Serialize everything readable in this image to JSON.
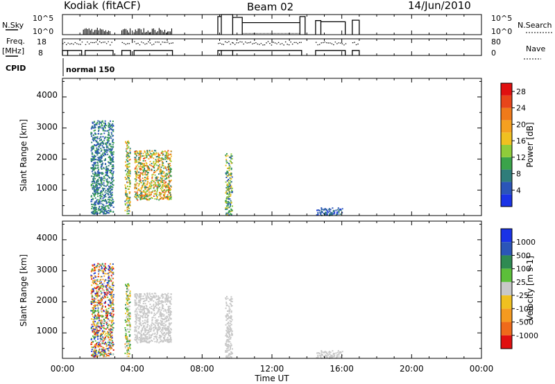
{
  "header": {
    "title_left": "Kodiak (fitACF)",
    "title_center": "Beam 02",
    "title_right": "14/Jun/2010"
  },
  "status_panels": {
    "nsky_label": "N.Sky",
    "nsky_ticks": [
      "10^5",
      "10^0"
    ],
    "nsearch_ticks": [
      "10^5",
      "10^0"
    ],
    "nsearch_label": "N.Search",
    "freq_label_line1": "Freq.",
    "freq_label_line2": "[MHz]",
    "freq_ticks": [
      "18",
      "8"
    ],
    "nave_ticks": [
      "80",
      "0"
    ],
    "nave_label": "Nave",
    "cpid_label": "CPID",
    "cpid_value": "normal 150"
  },
  "colors": {
    "power": [
      "#1a33e6",
      "#2b55b8",
      "#2f7d7a",
      "#3aa34a",
      "#8fcc3a",
      "#f0c020",
      "#f5a020",
      "#ef7a1a",
      "#e8451a",
      "#e01010"
    ],
    "velocity": [
      "#1a33e6",
      "#2b55b8",
      "#2e8a52",
      "#5cbf3a",
      "#c8c8c8",
      "#f0c020",
      "#f59a20",
      "#ef6a1a",
      "#e01010"
    ]
  },
  "chart_data": [
    {
      "type": "heatmap",
      "title": "Power",
      "xlabel": "Time UT",
      "ylabel": "Slant Range [km]",
      "x_tick_labels": [
        "00:00",
        "04:00",
        "08:00",
        "12:00",
        "16:00",
        "20:00",
        "00:00"
      ],
      "y_tick_labels": [
        "1000",
        "2000",
        "3000",
        "4000"
      ],
      "xlim_hours": [
        0,
        24
      ],
      "ylim_km": [
        180,
        4600
      ],
      "colorbar_label": "Power [dB]",
      "colorbar_tick_labels": [
        "4",
        "8",
        "12",
        "16",
        "20",
        "24",
        "28"
      ],
      "colorbar_range": [
        0,
        30
      ],
      "echo_regions": [
        {
          "t": [
            1.6,
            2.9
          ],
          "r": [
            250,
            3250
          ],
          "value_range": [
            3,
            12
          ]
        },
        {
          "t": [
            3.55,
            3.85
          ],
          "r": [
            250,
            2600
          ],
          "value_range": [
            4,
            22
          ]
        },
        {
          "t": [
            4.1,
            6.2
          ],
          "r": [
            700,
            2300
          ],
          "value_range": [
            6,
            26
          ]
        },
        {
          "t": [
            9.3,
            9.7
          ],
          "r": [
            200,
            2200
          ],
          "value_range": [
            4,
            18
          ]
        },
        {
          "t": [
            14.5,
            16.0
          ],
          "r": [
            200,
            450
          ],
          "value_range": [
            2,
            8
          ]
        }
      ]
    },
    {
      "type": "heatmap",
      "title": "Velocity",
      "xlabel": "Time UT",
      "ylabel": "Slant Range [km]",
      "x_tick_labels": [
        "00:00",
        "04:00",
        "08:00",
        "12:00",
        "16:00",
        "20:00",
        "00:00"
      ],
      "y_tick_labels": [
        "1000",
        "2000",
        "3000",
        "4000"
      ],
      "xlim_hours": [
        0,
        24
      ],
      "ylim_km": [
        180,
        4600
      ],
      "colorbar_label": "Velocity [m s-1]",
      "colorbar_tick_labels": [
        "1000",
        "500",
        "100",
        "25",
        "-25",
        "-100",
        "-500",
        "-1000"
      ],
      "echo_regions": [
        {
          "t": [
            1.6,
            2.9
          ],
          "r": [
            250,
            3250
          ],
          "value_range": [
            -1000,
            1000
          ]
        },
        {
          "t": [
            3.55,
            3.85
          ],
          "r": [
            250,
            2600
          ],
          "value_range": [
            -500,
            500
          ]
        },
        {
          "t": [
            4.1,
            6.2
          ],
          "r": [
            700,
            2300
          ],
          "value_range": [
            -100,
            100
          ]
        },
        {
          "t": [
            9.3,
            9.7
          ],
          "r": [
            200,
            2200
          ],
          "value_range": [
            -25,
            25
          ]
        },
        {
          "t": [
            14.5,
            16.0
          ],
          "r": [
            200,
            450
          ],
          "value_range": [
            -25,
            100
          ]
        }
      ]
    }
  ]
}
